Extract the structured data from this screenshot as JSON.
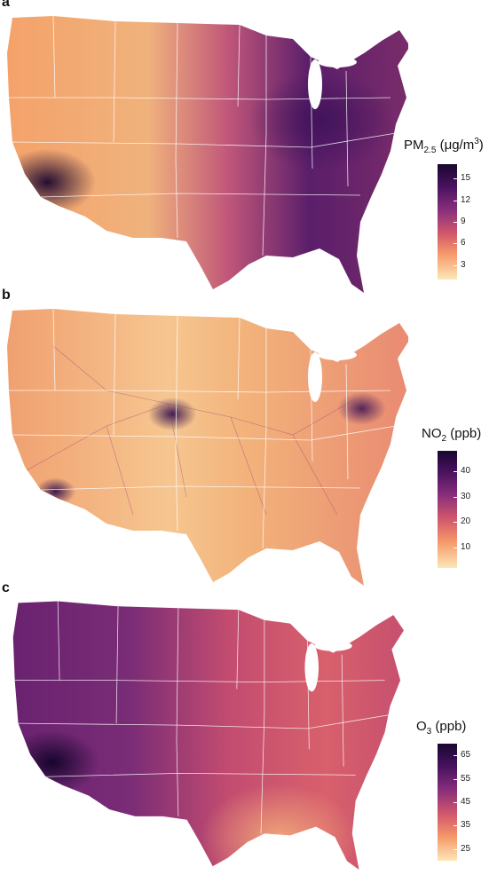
{
  "panels": [
    {
      "letter": "a",
      "legend": {
        "prefix": "PM",
        "sub": "2.5",
        "mid": " (μg/m",
        "sup": "3",
        "suffix": ")",
        "ticks": [
          "3",
          "6",
          "9",
          "12",
          "15"
        ],
        "tick_values": [
          3,
          6,
          9,
          12,
          15
        ],
        "range": [
          1,
          17
        ]
      },
      "colors": {
        "hi": "#2a0a4a",
        "mid": "#a03a7a",
        "lo": "#fde0a0"
      }
    },
    {
      "letter": "b",
      "legend": {
        "prefix": "NO",
        "sub": "2",
        "mid": " (ppb)",
        "sup": "",
        "suffix": "",
        "ticks": [
          "10",
          "20",
          "30",
          "40"
        ],
        "tick_values": [
          10,
          20,
          30,
          40
        ],
        "range": [
          2,
          48
        ]
      },
      "colors": {
        "hi": "#1a0630",
        "mid": "#c94c6a",
        "lo": "#fcefc0"
      }
    },
    {
      "letter": "c",
      "legend": {
        "prefix": "O",
        "sub": "3",
        "mid": " (ppb)",
        "sup": "",
        "suffix": "",
        "ticks": [
          "25",
          "35",
          "45",
          "55",
          "65"
        ],
        "tick_values": [
          25,
          35,
          45,
          55,
          65
        ],
        "range": [
          20,
          70
        ]
      },
      "colors": {
        "hi": "#200840",
        "mid": "#b4406e",
        "lo": "#fee9b0"
      }
    }
  ]
}
